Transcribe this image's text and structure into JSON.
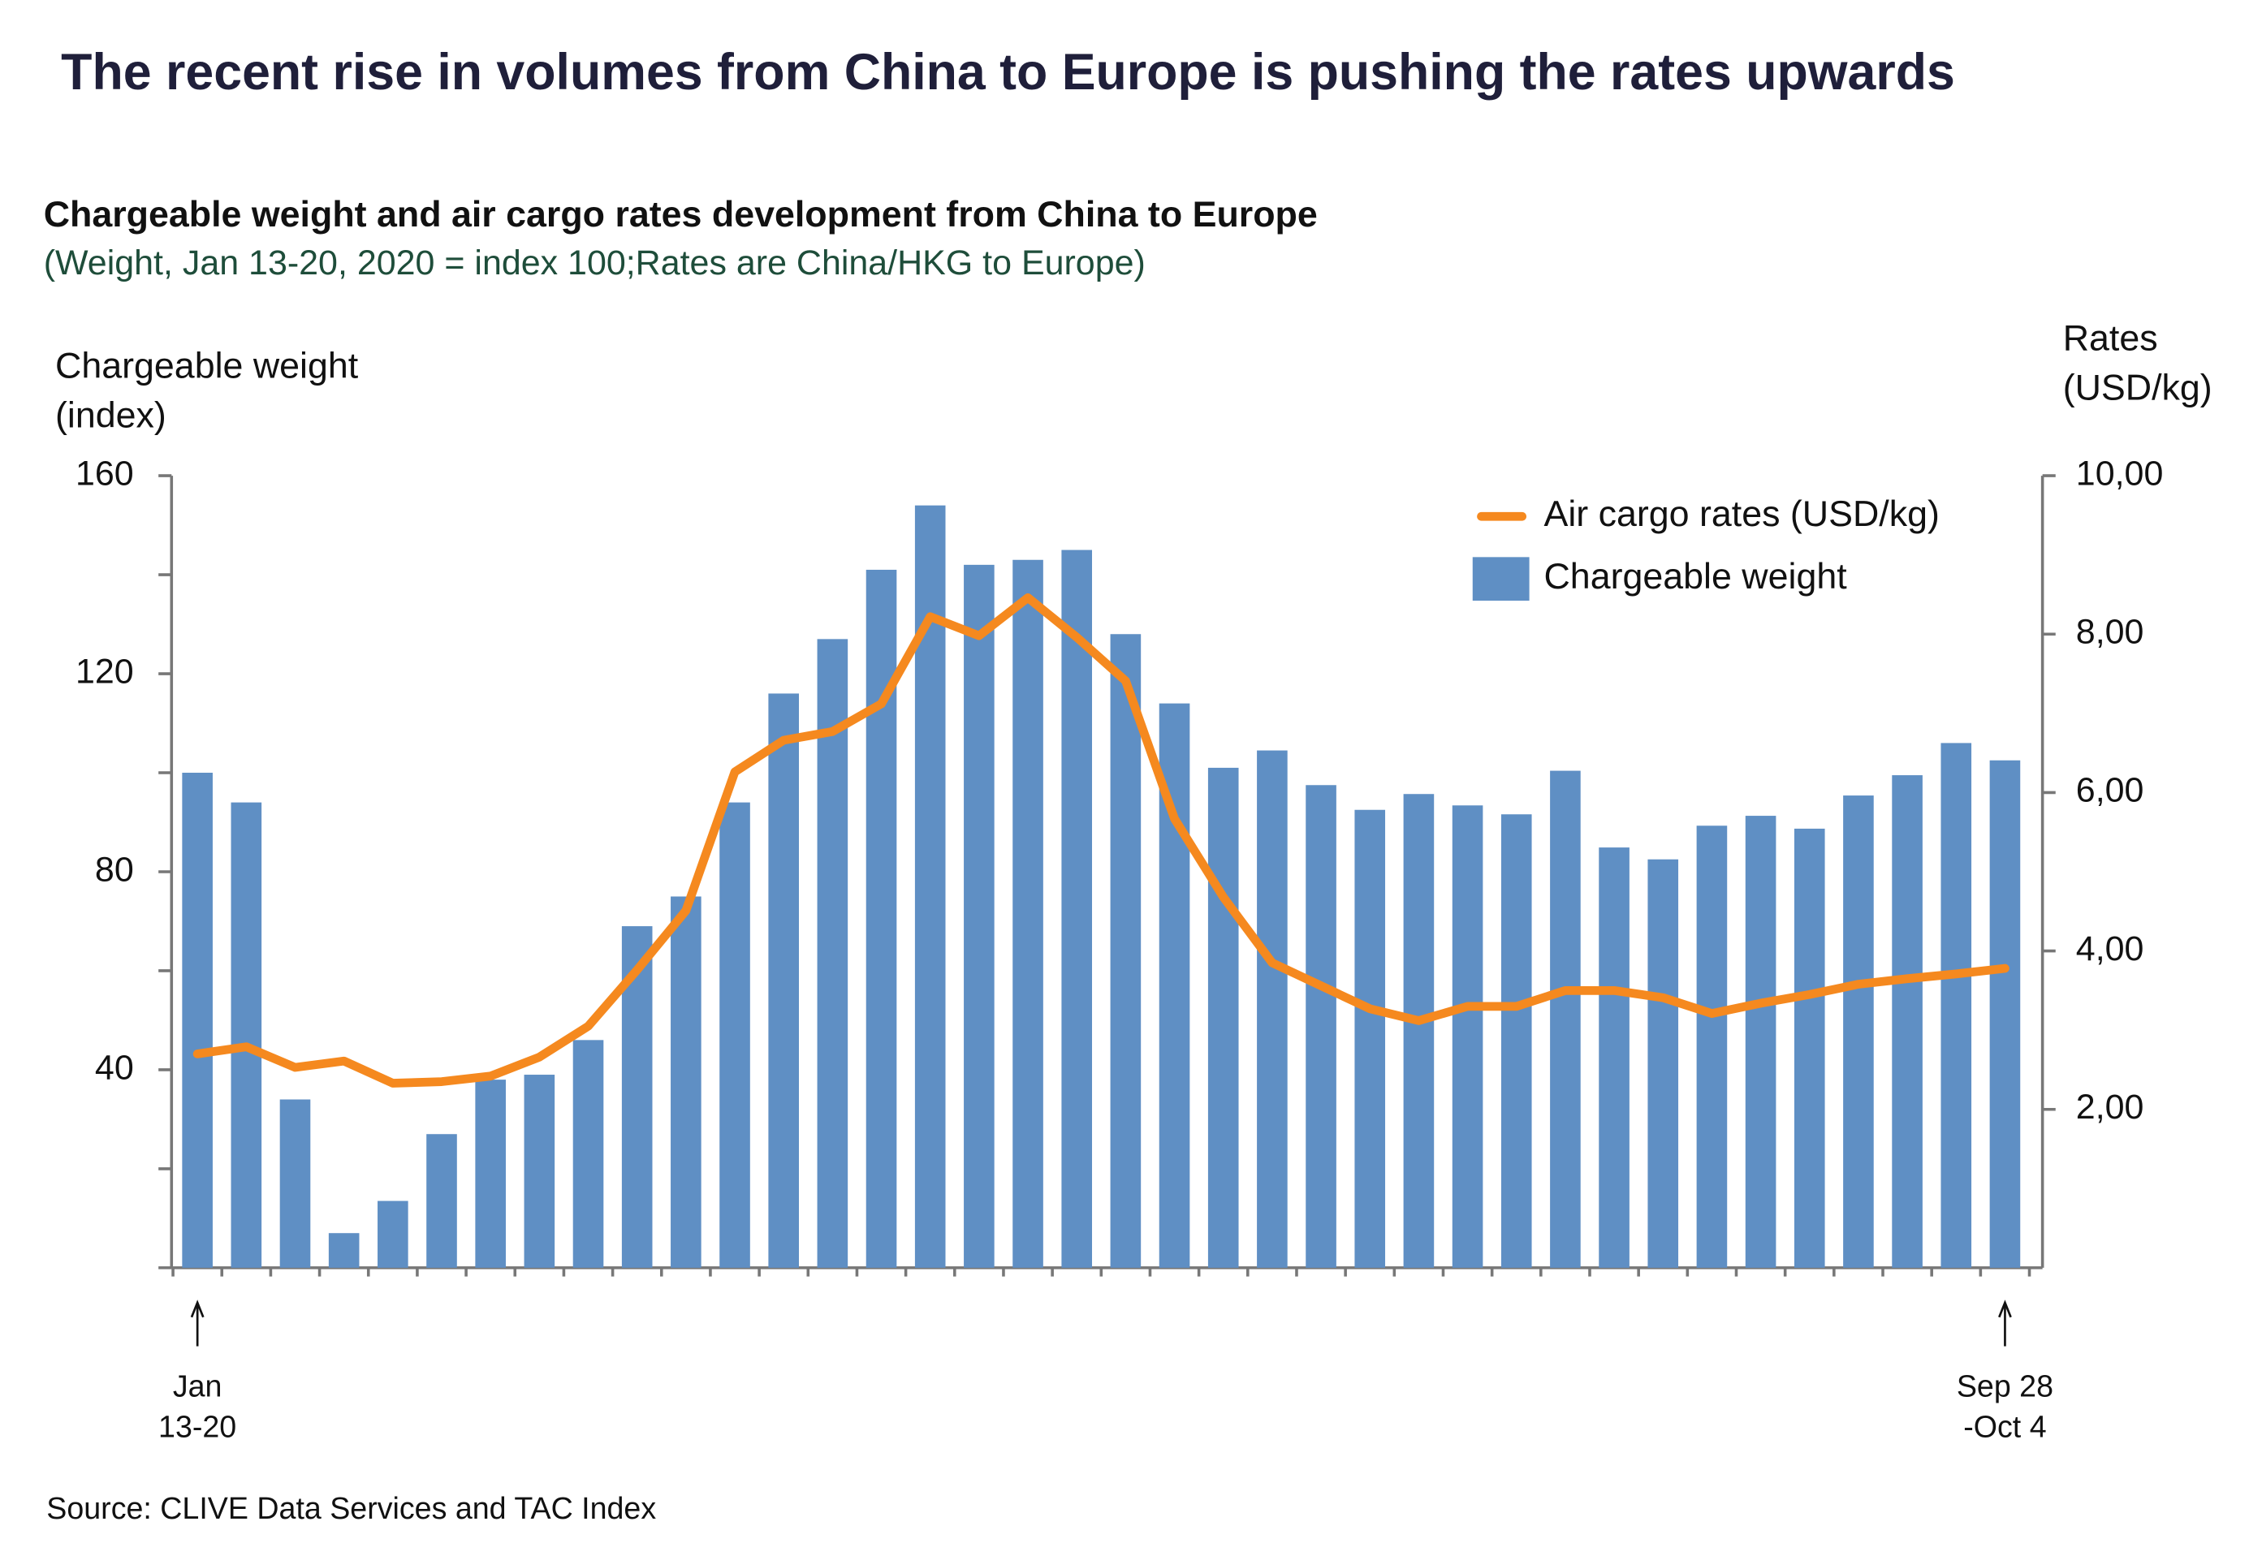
{
  "chart_data": {
    "type": "bar",
    "title": "The recent rise in volumes from China to Europe is pushing the rates upwards",
    "subtitle": "Chargeable weight and air cargo rates development from China to Europe",
    "note": "(Weight, Jan 13-20, 2020 = index 100;Rates are China/HKG to Europe)",
    "y_label": [
      "Chargeable weight",
      "(index)"
    ],
    "y2_label": [
      "Rates",
      "(USD/kg)"
    ],
    "source": "Source: CLIVE Data Services and TAC Index",
    "categories": [
      "Jan 13-20",
      null,
      null,
      null,
      null,
      null,
      null,
      null,
      null,
      null,
      null,
      null,
      null,
      null,
      null,
      null,
      null,
      null,
      null,
      null,
      null,
      null,
      null,
      null,
      null,
      null,
      null,
      null,
      null,
      null,
      null,
      null,
      null,
      null,
      null,
      null,
      null,
      "Sep 28 -Oct 4"
    ],
    "series": [
      {
        "name": "Chargeable weight",
        "type": "bar",
        "color": "#5f8fc4",
        "values": [
          100,
          94,
          34,
          7,
          13.5,
          27,
          38,
          39,
          46,
          69,
          75,
          94,
          116,
          127,
          141,
          154,
          142,
          143,
          145,
          128,
          114,
          101,
          104.5,
          97.5,
          92.5,
          95.7,
          93.4,
          91.6,
          100.4,
          84.9,
          82.5,
          89.3,
          91.3,
          88.7,
          95.4,
          99.5,
          106,
          102.5
        ]
      },
      {
        "name": "Air cargo rates (USD/kg)",
        "type": "line",
        "axis": "y2",
        "color": "#f5891f",
        "values": [
          2.7,
          2.79,
          2.53,
          2.61,
          2.33,
          2.35,
          2.42,
          2.66,
          3.05,
          3.76,
          4.51,
          6.26,
          6.66,
          6.77,
          7.12,
          8.22,
          7.98,
          8.46,
          7.96,
          7.41,
          5.67,
          4.68,
          3.85,
          3.56,
          3.27,
          3.12,
          3.3,
          3.3,
          3.5,
          3.5,
          3.41,
          3.21,
          3.34,
          3.45,
          3.58,
          3.65,
          3.71,
          3.78
        ]
      }
    ],
    "ylim": [
      0,
      160
    ],
    "yticks": [
      40,
      80,
      120,
      160
    ],
    "yminorticks": [
      0,
      20,
      60,
      100,
      140
    ],
    "y2lim": [
      0,
      10
    ],
    "y2ticks": [
      {
        "value": 2,
        "label": "2,00"
      },
      {
        "value": 4,
        "label": "4,00"
      },
      {
        "value": 6,
        "label": "6,00"
      },
      {
        "value": 8,
        "label": "8,00"
      },
      {
        "value": 10,
        "label": "10,00"
      }
    ],
    "legend": "top-right",
    "grid": false
  }
}
